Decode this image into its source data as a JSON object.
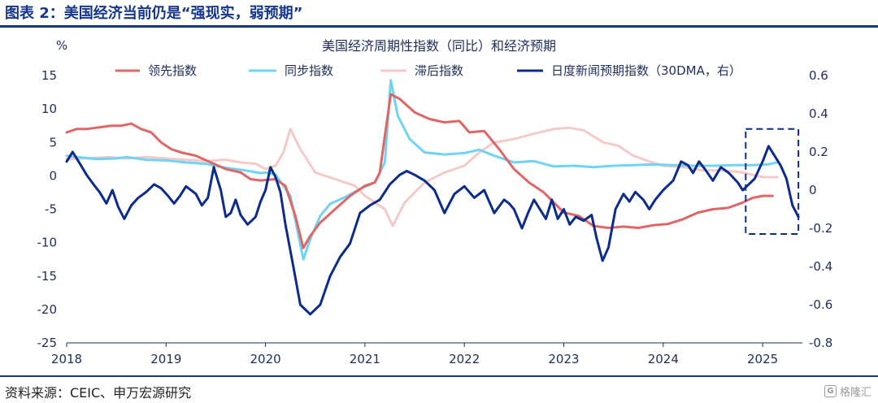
{
  "figure": {
    "title": "图表 2：美国经济当前仍是“强现实，弱预期”",
    "source": "资料来源：CEIC、申万宏源研究",
    "watermark": "格隆汇",
    "watermark_mark": "G"
  },
  "chart_data": {
    "type": "line",
    "title": "美国经济周期性指数（同比）和经济预期",
    "left_unit": "%",
    "left_ylim": [
      -25,
      15
    ],
    "left_ticks": [
      "15",
      "10",
      "5",
      "0",
      "-5",
      "-10",
      "-15",
      "-20",
      "-25"
    ],
    "right_ylim": [
      -0.8,
      0.6
    ],
    "right_ticks": [
      "0.6",
      "0.4",
      "0.2",
      "0",
      "-0.2",
      "-0.4",
      "-0.6",
      "-0.8"
    ],
    "x_ticks": [
      "2018",
      "2019",
      "2020",
      "2021",
      "2022",
      "2023",
      "2024",
      "2025"
    ],
    "grid": false,
    "legend_position": "top",
    "colors": {
      "leading": "#e06666",
      "coincident": "#6fd3f4",
      "lagging": "#f6c9c9",
      "expectation": "#0b2c8c",
      "highlight": "#0b2c8c"
    },
    "series": [
      {
        "name": "领先指数",
        "axis": "left",
        "key": "leading",
        "points": [
          [
            2018.0,
            6.5
          ],
          [
            2018.1,
            7.0
          ],
          [
            2018.2,
            7.0
          ],
          [
            2018.3,
            7.2
          ],
          [
            2018.45,
            7.5
          ],
          [
            2018.55,
            7.5
          ],
          [
            2018.65,
            7.8
          ],
          [
            2018.75,
            7.0
          ],
          [
            2018.85,
            6.5
          ],
          [
            2018.95,
            5.0
          ],
          [
            2019.05,
            4.0
          ],
          [
            2019.15,
            3.5
          ],
          [
            2019.3,
            3.0
          ],
          [
            2019.45,
            2.0
          ],
          [
            2019.6,
            1.0
          ],
          [
            2019.75,
            0.5
          ],
          [
            2019.85,
            -0.5
          ],
          [
            2019.95,
            -0.7
          ],
          [
            2020.1,
            -0.5
          ],
          [
            2020.2,
            -1.5
          ],
          [
            2020.3,
            -6.0
          ],
          [
            2020.38,
            -10.8
          ],
          [
            2020.45,
            -9.0
          ],
          [
            2020.55,
            -7.0
          ],
          [
            2020.7,
            -5.0
          ],
          [
            2020.85,
            -3.0
          ],
          [
            2021.0,
            -1.5
          ],
          [
            2021.1,
            -1.0
          ],
          [
            2021.15,
            0.5
          ],
          [
            2021.2,
            6.0
          ],
          [
            2021.26,
            12.2
          ],
          [
            2021.35,
            11.5
          ],
          [
            2021.5,
            9.5
          ],
          [
            2021.65,
            8.5
          ],
          [
            2021.8,
            8.0
          ],
          [
            2021.95,
            8.2
          ],
          [
            2022.05,
            6.5
          ],
          [
            2022.2,
            6.7
          ],
          [
            2022.35,
            4.0
          ],
          [
            2022.5,
            1.0
          ],
          [
            2022.65,
            -1.0
          ],
          [
            2022.8,
            -2.5
          ],
          [
            2022.9,
            -4.0
          ],
          [
            2023.0,
            -5.5
          ],
          [
            2023.15,
            -6.0
          ],
          [
            2023.3,
            -7.5
          ],
          [
            2023.45,
            -7.8
          ],
          [
            2023.6,
            -7.6
          ],
          [
            2023.75,
            -7.8
          ],
          [
            2023.9,
            -7.4
          ],
          [
            2024.05,
            -7.2
          ],
          [
            2024.2,
            -6.5
          ],
          [
            2024.35,
            -5.5
          ],
          [
            2024.5,
            -5.0
          ],
          [
            2024.65,
            -4.8
          ],
          [
            2024.8,
            -4.0
          ],
          [
            2024.9,
            -3.3
          ],
          [
            2025.0,
            -3.0
          ],
          [
            2025.1,
            -3.0
          ]
        ]
      },
      {
        "name": "同步指数",
        "axis": "left",
        "key": "coincident",
        "points": [
          [
            2018.0,
            3.0
          ],
          [
            2018.1,
            2.8
          ],
          [
            2018.3,
            2.5
          ],
          [
            2018.5,
            2.6
          ],
          [
            2018.6,
            2.8
          ],
          [
            2018.8,
            2.4
          ],
          [
            2019.0,
            2.3
          ],
          [
            2019.2,
            2.0
          ],
          [
            2019.4,
            1.8
          ],
          [
            2019.6,
            1.2
          ],
          [
            2019.8,
            0.8
          ],
          [
            2019.95,
            0.4
          ],
          [
            2020.0,
            0.5
          ],
          [
            2020.1,
            0.2
          ],
          [
            2020.25,
            -3.0
          ],
          [
            2020.38,
            -12.5
          ],
          [
            2020.45,
            -9.5
          ],
          [
            2020.55,
            -6.0
          ],
          [
            2020.65,
            -4.2
          ],
          [
            2020.8,
            -3.2
          ],
          [
            2020.95,
            -2.0
          ],
          [
            2021.1,
            -1.0
          ],
          [
            2021.2,
            2.0
          ],
          [
            2021.26,
            14.3
          ],
          [
            2021.33,
            9.0
          ],
          [
            2021.45,
            5.5
          ],
          [
            2021.6,
            3.5
          ],
          [
            2021.8,
            3.2
          ],
          [
            2022.0,
            3.4
          ],
          [
            2022.15,
            3.9
          ],
          [
            2022.3,
            3.0
          ],
          [
            2022.5,
            2.0
          ],
          [
            2022.7,
            2.2
          ],
          [
            2022.9,
            1.4
          ],
          [
            2023.1,
            1.5
          ],
          [
            2023.3,
            1.3
          ],
          [
            2023.5,
            1.5
          ],
          [
            2023.7,
            1.6
          ],
          [
            2023.9,
            1.7
          ],
          [
            2024.1,
            1.6
          ],
          [
            2024.3,
            1.5
          ],
          [
            2024.5,
            1.5
          ],
          [
            2024.7,
            1.6
          ],
          [
            2024.9,
            1.6
          ],
          [
            2025.05,
            1.7
          ],
          [
            2025.15,
            2.0
          ]
        ]
      },
      {
        "name": "滞后指数",
        "axis": "left",
        "key": "lagging",
        "points": [
          [
            2018.0,
            2.5
          ],
          [
            2018.2,
            2.6
          ],
          [
            2018.4,
            2.8
          ],
          [
            2018.6,
            2.6
          ],
          [
            2018.8,
            2.8
          ],
          [
            2019.0,
            2.6
          ],
          [
            2019.2,
            2.4
          ],
          [
            2019.4,
            2.2
          ],
          [
            2019.6,
            2.4
          ],
          [
            2019.75,
            2.0
          ],
          [
            2019.9,
            1.8
          ],
          [
            2020.0,
            1.0
          ],
          [
            2020.1,
            1.5
          ],
          [
            2020.18,
            3.5
          ],
          [
            2020.25,
            7.0
          ],
          [
            2020.35,
            4.0
          ],
          [
            2020.5,
            0.5
          ],
          [
            2020.7,
            -0.5
          ],
          [
            2020.9,
            -1.5
          ],
          [
            2021.0,
            -3.0
          ],
          [
            2021.1,
            -4.0
          ],
          [
            2021.2,
            -5.0
          ],
          [
            2021.28,
            -7.5
          ],
          [
            2021.4,
            -4.0
          ],
          [
            2021.6,
            -1.0
          ],
          [
            2021.8,
            0.5
          ],
          [
            2022.0,
            1.5
          ],
          [
            2022.15,
            3.5
          ],
          [
            2022.3,
            5.0
          ],
          [
            2022.5,
            5.5
          ],
          [
            2022.7,
            6.3
          ],
          [
            2022.9,
            7.0
          ],
          [
            2023.05,
            7.2
          ],
          [
            2023.2,
            6.8
          ],
          [
            2023.4,
            5.0
          ],
          [
            2023.55,
            4.5
          ],
          [
            2023.7,
            3.0
          ],
          [
            2023.85,
            2.2
          ],
          [
            2024.0,
            1.5
          ],
          [
            2024.2,
            1.3
          ],
          [
            2024.4,
            0.8
          ],
          [
            2024.6,
            0.8
          ],
          [
            2024.8,
            0.5
          ],
          [
            2025.0,
            -0.2
          ],
          [
            2025.15,
            -0.2
          ]
        ]
      },
      {
        "name": "日度新闻预期指数（30DMA，右）",
        "axis": "right",
        "key": "expectation",
        "points": [
          [
            2018.0,
            0.15
          ],
          [
            2018.06,
            0.2
          ],
          [
            2018.12,
            0.15
          ],
          [
            2018.2,
            0.08
          ],
          [
            2018.27,
            0.03
          ],
          [
            2018.33,
            -0.01
          ],
          [
            2018.4,
            -0.07
          ],
          [
            2018.46,
            0.0
          ],
          [
            2018.52,
            -0.09
          ],
          [
            2018.58,
            -0.15
          ],
          [
            2018.65,
            -0.08
          ],
          [
            2018.72,
            -0.04
          ],
          [
            2018.8,
            -0.01
          ],
          [
            2018.88,
            0.03
          ],
          [
            2018.95,
            0.01
          ],
          [
            2019.02,
            -0.03
          ],
          [
            2019.08,
            -0.07
          ],
          [
            2019.14,
            -0.03
          ],
          [
            2019.2,
            0.02
          ],
          [
            2019.3,
            -0.02
          ],
          [
            2019.36,
            -0.08
          ],
          [
            2019.42,
            -0.04
          ],
          [
            2019.48,
            0.12
          ],
          [
            2019.55,
            0.0
          ],
          [
            2019.6,
            -0.14
          ],
          [
            2019.65,
            -0.12
          ],
          [
            2019.7,
            -0.05
          ],
          [
            2019.75,
            -0.13
          ],
          [
            2019.82,
            -0.18
          ],
          [
            2019.9,
            -0.14
          ],
          [
            2019.95,
            -0.06
          ],
          [
            2020.0,
            0.0
          ],
          [
            2020.05,
            0.12
          ],
          [
            2020.1,
            0.07
          ],
          [
            2020.15,
            -0.01
          ],
          [
            2020.2,
            -0.18
          ],
          [
            2020.28,
            -0.4
          ],
          [
            2020.35,
            -0.6
          ],
          [
            2020.45,
            -0.65
          ],
          [
            2020.55,
            -0.6
          ],
          [
            2020.65,
            -0.45
          ],
          [
            2020.75,
            -0.35
          ],
          [
            2020.85,
            -0.28
          ],
          [
            2020.95,
            -0.12
          ],
          [
            2021.05,
            -0.08
          ],
          [
            2021.15,
            -0.05
          ],
          [
            2021.25,
            0.03
          ],
          [
            2021.35,
            0.08
          ],
          [
            2021.42,
            0.1
          ],
          [
            2021.5,
            0.08
          ],
          [
            2021.6,
            0.05
          ],
          [
            2021.7,
            0.0
          ],
          [
            2021.8,
            -0.12
          ],
          [
            2021.9,
            -0.02
          ],
          [
            2022.0,
            0.02
          ],
          [
            2022.1,
            -0.04
          ],
          [
            2022.2,
            0.0
          ],
          [
            2022.3,
            -0.12
          ],
          [
            2022.4,
            -0.05
          ],
          [
            2022.45,
            -0.07
          ],
          [
            2022.5,
            -0.1
          ],
          [
            2022.58,
            -0.2
          ],
          [
            2022.64,
            -0.12
          ],
          [
            2022.7,
            -0.05
          ],
          [
            2022.76,
            -0.1
          ],
          [
            2022.82,
            -0.15
          ],
          [
            2022.88,
            -0.05
          ],
          [
            2022.94,
            -0.15
          ],
          [
            2023.0,
            -0.1
          ],
          [
            2023.06,
            -0.18
          ],
          [
            2023.12,
            -0.14
          ],
          [
            2023.2,
            -0.16
          ],
          [
            2023.28,
            -0.13
          ],
          [
            2023.33,
            -0.25
          ],
          [
            2023.39,
            -0.37
          ],
          [
            2023.45,
            -0.3
          ],
          [
            2023.52,
            -0.1
          ],
          [
            2023.6,
            -0.02
          ],
          [
            2023.66,
            -0.06
          ],
          [
            2023.72,
            -0.01
          ],
          [
            2023.8,
            -0.05
          ],
          [
            2023.86,
            -0.1
          ],
          [
            2023.92,
            -0.05
          ],
          [
            2024.0,
            0.0
          ],
          [
            2024.1,
            0.05
          ],
          [
            2024.18,
            0.15
          ],
          [
            2024.25,
            0.13
          ],
          [
            2024.3,
            0.09
          ],
          [
            2024.36,
            0.15
          ],
          [
            2024.42,
            0.11
          ],
          [
            2024.5,
            0.05
          ],
          [
            2024.58,
            0.12
          ],
          [
            2024.66,
            0.09
          ],
          [
            2024.75,
            0.04
          ],
          [
            2024.8,
            0.0
          ],
          [
            2024.86,
            0.03
          ],
          [
            2024.92,
            0.06
          ],
          [
            2025.0,
            0.15
          ],
          [
            2025.06,
            0.23
          ],
          [
            2025.12,
            0.18
          ],
          [
            2025.18,
            0.13
          ],
          [
            2025.24,
            0.06
          ],
          [
            2025.3,
            -0.08
          ],
          [
            2025.36,
            -0.14
          ]
        ]
      }
    ],
    "highlight_box": {
      "x_from": 2024.83,
      "x_to": 2025.36,
      "y_from": 0.32,
      "y_to": -0.23,
      "style": "dashed"
    }
  }
}
